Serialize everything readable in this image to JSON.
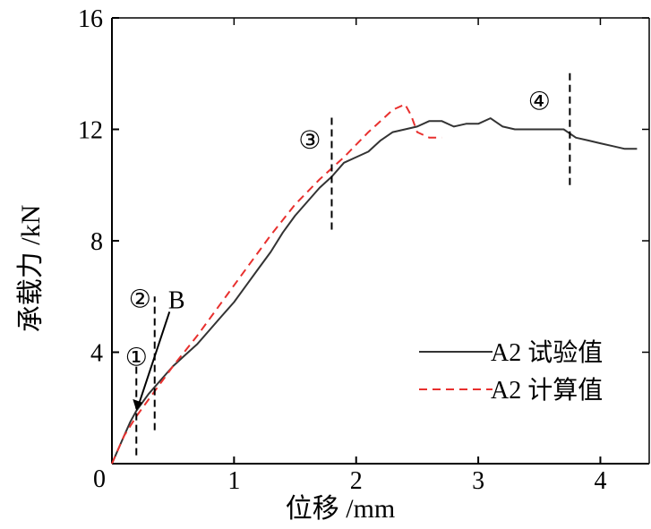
{
  "chart_data": {
    "type": "line",
    "xlabel": "位移 /mm",
    "ylabel": "承载力 /kN",
    "xlim": [
      0,
      4.4
    ],
    "ylim": [
      0,
      16
    ],
    "x_ticks": [
      0,
      1,
      2,
      3,
      4
    ],
    "y_ticks": [
      4,
      8,
      12,
      16
    ],
    "legend_position": "bottom-right",
    "series": [
      {
        "name": "A2 试验值",
        "color": "#333333",
        "dash": "solid",
        "points": [
          [
            0,
            0
          ],
          [
            0.05,
            0.5
          ],
          [
            0.1,
            1.0
          ],
          [
            0.15,
            1.5
          ],
          [
            0.2,
            1.9
          ],
          [
            0.25,
            2.2
          ],
          [
            0.3,
            2.5
          ],
          [
            0.4,
            3.0
          ],
          [
            0.5,
            3.5
          ],
          [
            0.6,
            3.9
          ],
          [
            0.7,
            4.3
          ],
          [
            0.8,
            4.8
          ],
          [
            0.9,
            5.3
          ],
          [
            1.0,
            5.8
          ],
          [
            1.1,
            6.4
          ],
          [
            1.2,
            7.0
          ],
          [
            1.3,
            7.6
          ],
          [
            1.4,
            8.3
          ],
          [
            1.5,
            8.9
          ],
          [
            1.6,
            9.4
          ],
          [
            1.7,
            9.9
          ],
          [
            1.8,
            10.3
          ],
          [
            1.9,
            10.8
          ],
          [
            2.0,
            11.0
          ],
          [
            2.1,
            11.2
          ],
          [
            2.2,
            11.6
          ],
          [
            2.3,
            11.9
          ],
          [
            2.4,
            12.0
          ],
          [
            2.5,
            12.1
          ],
          [
            2.6,
            12.3
          ],
          [
            2.7,
            12.3
          ],
          [
            2.8,
            12.1
          ],
          [
            2.9,
            12.2
          ],
          [
            3.0,
            12.2
          ],
          [
            3.1,
            12.4
          ],
          [
            3.2,
            12.1
          ],
          [
            3.3,
            12.0
          ],
          [
            3.4,
            12.0
          ],
          [
            3.5,
            12.0
          ],
          [
            3.6,
            12.0
          ],
          [
            3.7,
            12.0
          ],
          [
            3.8,
            11.7
          ],
          [
            3.9,
            11.6
          ],
          [
            4.0,
            11.5
          ],
          [
            4.1,
            11.4
          ],
          [
            4.2,
            11.3
          ],
          [
            4.3,
            11.3
          ]
        ]
      },
      {
        "name": "A2 计算值",
        "color": "#e8302e",
        "dash": "dashed",
        "points": [
          [
            0,
            0
          ],
          [
            0.1,
            1.0
          ],
          [
            0.2,
            1.7
          ],
          [
            0.3,
            2.3
          ],
          [
            0.5,
            3.5
          ],
          [
            0.7,
            4.6
          ],
          [
            0.9,
            5.8
          ],
          [
            1.1,
            7.0
          ],
          [
            1.3,
            8.2
          ],
          [
            1.5,
            9.3
          ],
          [
            1.7,
            10.2
          ],
          [
            1.9,
            11.0
          ],
          [
            2.1,
            11.9
          ],
          [
            2.2,
            12.3
          ],
          [
            2.3,
            12.7
          ],
          [
            2.4,
            12.9
          ],
          [
            2.45,
            12.5
          ],
          [
            2.5,
            11.9
          ],
          [
            2.6,
            11.7
          ],
          [
            2.7,
            11.7
          ]
        ]
      }
    ],
    "annotations": [
      {
        "label": "①",
        "x": 0.2,
        "y": 3.8,
        "marker_x": 0.2,
        "marker_y_range": [
          0.3,
          3.6
        ]
      },
      {
        "label": "②",
        "x": 0.23,
        "y": 5.9,
        "marker_x": 0.35,
        "marker_y_range": [
          1.2,
          6.0
        ]
      },
      {
        "label": "B",
        "x": 0.53,
        "y": 5.9
      },
      {
        "label": "③",
        "x": 1.62,
        "y": 11.6,
        "marker_x": 1.8,
        "marker_y_range": [
          8.4,
          12.5
        ]
      },
      {
        "label": "④",
        "x": 3.5,
        "y": 13.0,
        "marker_x": 3.75,
        "marker_y_range": [
          10.0,
          14.1
        ]
      }
    ]
  }
}
